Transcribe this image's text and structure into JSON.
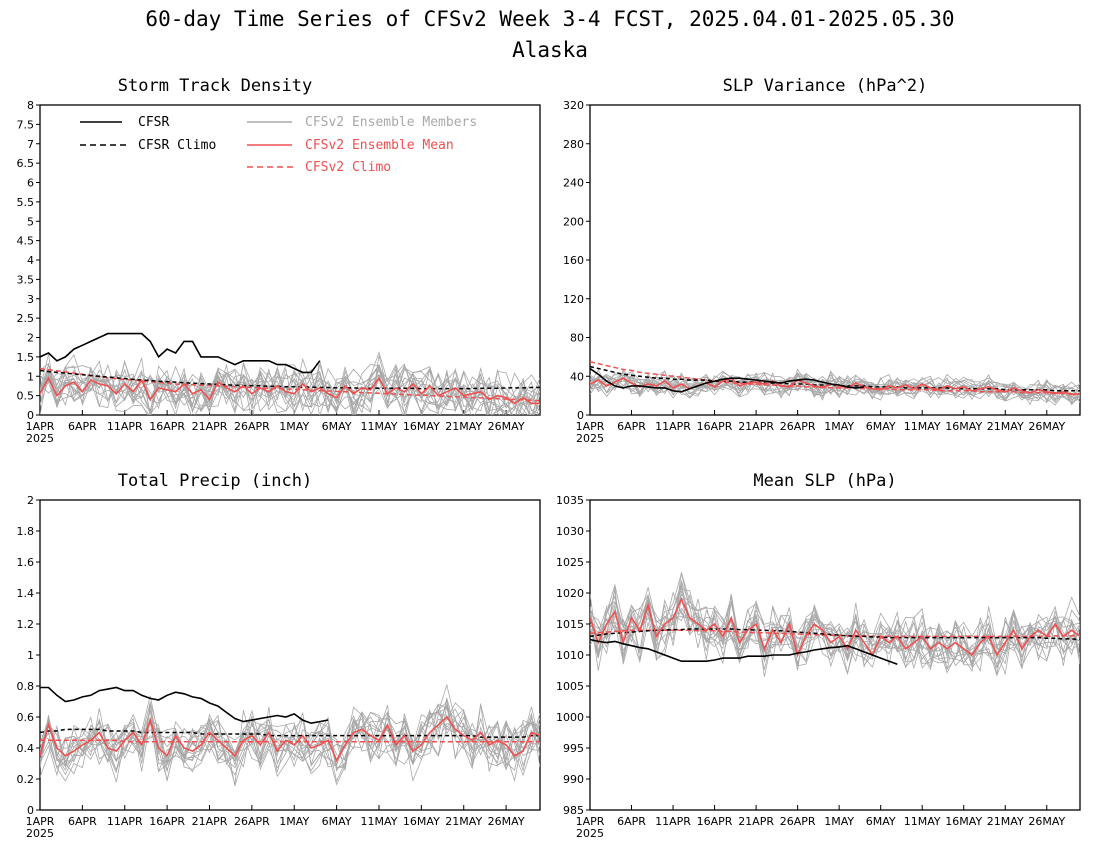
{
  "figure": {
    "title": "60-day Time Series of CFSv2 Week 3-4 FCST, 2025.04.01-2025.05.30",
    "subtitle": "Alaska"
  },
  "colors": {
    "cfsr": "#000000",
    "cfsr_climo": "#000000",
    "members": "#a8a8a8",
    "ens_mean": "#f05050",
    "cfsv2_climo": "#f05050"
  },
  "x_axis": {
    "ticks": [
      {
        "day": 0,
        "label": "1APR",
        "sublabel": "2025"
      },
      {
        "day": 5,
        "label": "6APR"
      },
      {
        "day": 10,
        "label": "11APR"
      },
      {
        "day": 15,
        "label": "16APR"
      },
      {
        "day": 20,
        "label": "21APR"
      },
      {
        "day": 25,
        "label": "26APR"
      },
      {
        "day": 30,
        "label": "1MAY"
      },
      {
        "day": 35,
        "label": "6MAY"
      },
      {
        "day": 40,
        "label": "11MAY"
      },
      {
        "day": 45,
        "label": "16MAY"
      },
      {
        "day": 50,
        "label": "21MAY"
      },
      {
        "day": 55,
        "label": "26MAY"
      }
    ]
  },
  "legend": {
    "cfsr": "CFSR",
    "cfsr_climo": "CFSR Climo",
    "members": "CFSv2 Ensemble Members",
    "ens_mean": "CFSv2 Ensemble Mean",
    "cfsv2_climo": "CFSv2 Climo"
  },
  "chart_data": [
    {
      "type": "line",
      "title": "Storm Track Density",
      "xlim": [
        0,
        59
      ],
      "ylim": [
        0,
        8
      ],
      "yticks": [
        0,
        0.5,
        1,
        1.5,
        2,
        2.5,
        3,
        3.5,
        4,
        4.5,
        5,
        5.5,
        6,
        6.5,
        7,
        7.5,
        8
      ],
      "grid": false,
      "legend": "top-left",
      "members_spread": 0.45,
      "cfsr": [
        1.5,
        1.6,
        1.4,
        1.5,
        1.7,
        1.8,
        1.9,
        2.0,
        2.1,
        2.1,
        2.1,
        2.1,
        2.1,
        1.9,
        1.5,
        1.7,
        1.6,
        1.9,
        1.9,
        1.5,
        1.5,
        1.5,
        1.4,
        1.3,
        1.4,
        1.4,
        1.4,
        1.4,
        1.3,
        1.3,
        1.2,
        1.1,
        1.1,
        1.4
      ],
      "cfsr_climo": [
        1.15,
        1.12,
        1.1,
        1.08,
        1.06,
        1.04,
        1.02,
        1.0,
        0.98,
        0.96,
        0.94,
        0.92,
        0.9,
        0.89,
        0.87,
        0.86,
        0.85,
        0.83,
        0.82,
        0.81,
        0.8,
        0.79,
        0.78,
        0.77,
        0.76,
        0.76,
        0.75,
        0.74,
        0.74,
        0.73,
        0.73,
        0.72,
        0.72,
        0.71,
        0.71,
        0.7,
        0.7,
        0.7,
        0.69,
        0.69,
        0.69,
        0.69,
        0.69,
        0.69,
        0.69,
        0.68,
        0.68,
        0.68,
        0.68,
        0.68,
        0.68,
        0.68,
        0.69,
        0.69,
        0.69,
        0.7,
        0.7,
        0.7,
        0.71,
        0.71
      ],
      "ens_mean": [
        0.55,
        0.95,
        0.5,
        0.75,
        0.85,
        0.6,
        0.9,
        0.8,
        0.75,
        0.55,
        0.8,
        0.6,
        0.9,
        0.4,
        0.7,
        0.65,
        0.6,
        0.8,
        0.55,
        0.65,
        0.4,
        0.85,
        0.7,
        0.6,
        0.75,
        0.55,
        0.7,
        0.6,
        0.75,
        0.6,
        0.55,
        0.8,
        0.6,
        0.7,
        0.55,
        0.45,
        0.75,
        0.55,
        0.7,
        0.65,
        0.95,
        0.55,
        0.7,
        0.6,
        0.8,
        0.55,
        0.75,
        0.5,
        0.6,
        0.7,
        0.5,
        0.55,
        0.6,
        0.4,
        0.5,
        0.45,
        0.3,
        0.45,
        0.3,
        0.3
      ],
      "cfsv2_climo": [
        1.2,
        1.17,
        1.14,
        1.11,
        1.08,
        1.05,
        1.02,
        0.99,
        0.96,
        0.94,
        0.92,
        0.9,
        0.88,
        0.86,
        0.84,
        0.82,
        0.8,
        0.79,
        0.78,
        0.77,
        0.76,
        0.75,
        0.74,
        0.73,
        0.72,
        0.71,
        0.7,
        0.69,
        0.68,
        0.67,
        0.66,
        0.65,
        0.64,
        0.63,
        0.62,
        0.61,
        0.6,
        0.59,
        0.58,
        0.57,
        0.56,
        0.55,
        0.54,
        0.53,
        0.52,
        0.51,
        0.5,
        0.49,
        0.48,
        0.47,
        0.46,
        0.45,
        0.44,
        0.43,
        0.42,
        0.41,
        0.4,
        0.39,
        0.38,
        0.37
      ]
    },
    {
      "type": "line",
      "title": "SLP Variance (hPa^2)",
      "xlim": [
        0,
        59
      ],
      "ylim": [
        0,
        320
      ],
      "yticks": [
        0,
        40,
        80,
        120,
        160,
        200,
        240,
        280,
        320
      ],
      "grid": false,
      "members_spread": 8,
      "cfsr": [
        48,
        42,
        35,
        30,
        28,
        30,
        30,
        29,
        28,
        28,
        25,
        24,
        27,
        30,
        33,
        35,
        37,
        38,
        38,
        37,
        36,
        35,
        34,
        33,
        35,
        36,
        37,
        36,
        34,
        32,
        31,
        29,
        28,
        29
      ],
      "cfsr_climo": [
        50,
        48,
        46,
        44,
        42,
        41,
        40,
        39,
        38,
        38,
        37,
        37,
        36,
        36,
        36,
        35,
        35,
        35,
        34,
        34,
        34,
        33,
        33,
        33,
        32,
        32,
        32,
        31,
        31,
        31,
        30,
        30,
        30,
        30,
        29,
        29,
        29,
        29,
        28,
        28,
        28,
        28,
        28,
        28,
        27,
        27,
        27,
        27,
        27,
        27,
        26,
        26,
        26,
        26,
        26,
        26,
        25,
        25,
        25,
        25
      ],
      "ens_mean": [
        32,
        36,
        30,
        34,
        38,
        33,
        29,
        32,
        30,
        35,
        28,
        32,
        27,
        30,
        33,
        29,
        35,
        38,
        30,
        33,
        34,
        32,
        35,
        30,
        29,
        36,
        33,
        30,
        28,
        32,
        30,
        28,
        33,
        29,
        27,
        26,
        30,
        28,
        31,
        27,
        32,
        28,
        26,
        30,
        27,
        29,
        25,
        27,
        29,
        26,
        24,
        28,
        25,
        23,
        26,
        24,
        22,
        24,
        21,
        22
      ],
      "cfsv2_climo": [
        55,
        53,
        51,
        49,
        47,
        46,
        44,
        43,
        42,
        41,
        40,
        39,
        38,
        37,
        36,
        35,
        34,
        33,
        33,
        32,
        32,
        31,
        31,
        30,
        30,
        30,
        29,
        29,
        29,
        28,
        28,
        28,
        28,
        27,
        27,
        27,
        27,
        26,
        26,
        26,
        26,
        26,
        25,
        25,
        25,
        25,
        25,
        24,
        24,
        24,
        24,
        24,
        23,
        23,
        23,
        23,
        23,
        22,
        22,
        22
      ]
    },
    {
      "type": "line",
      "title": "Total Precip (inch)",
      "xlim": [
        0,
        59
      ],
      "ylim": [
        0,
        2
      ],
      "yticks": [
        0,
        0.2,
        0.4,
        0.6,
        0.8,
        1,
        1.2,
        1.4,
        1.6,
        1.8,
        2
      ],
      "grid": false,
      "members_spread": 0.12,
      "cfsr": [
        0.79,
        0.79,
        0.74,
        0.7,
        0.71,
        0.73,
        0.74,
        0.77,
        0.78,
        0.79,
        0.77,
        0.77,
        0.74,
        0.72,
        0.71,
        0.74,
        0.76,
        0.75,
        0.73,
        0.72,
        0.69,
        0.67,
        0.63,
        0.59,
        0.57,
        0.58,
        0.59,
        0.6,
        0.61,
        0.6,
        0.62,
        0.58,
        0.56,
        0.57,
        0.58
      ],
      "cfsr_climo": [
        0.5,
        0.51,
        0.51,
        0.52,
        0.52,
        0.52,
        0.52,
        0.52,
        0.51,
        0.51,
        0.51,
        0.51,
        0.5,
        0.5,
        0.5,
        0.5,
        0.5,
        0.5,
        0.5,
        0.49,
        0.49,
        0.49,
        0.49,
        0.49,
        0.49,
        0.49,
        0.49,
        0.48,
        0.48,
        0.48,
        0.48,
        0.48,
        0.48,
        0.48,
        0.48,
        0.48,
        0.48,
        0.48,
        0.48,
        0.48,
        0.48,
        0.48,
        0.48,
        0.48,
        0.48,
        0.48,
        0.48,
        0.48,
        0.48,
        0.48,
        0.48,
        0.48,
        0.47,
        0.47,
        0.47,
        0.47,
        0.47,
        0.47,
        0.48,
        0.48
      ],
      "ens_mean": [
        0.35,
        0.55,
        0.4,
        0.35,
        0.38,
        0.42,
        0.45,
        0.5,
        0.4,
        0.38,
        0.45,
        0.5,
        0.42,
        0.58,
        0.4,
        0.35,
        0.48,
        0.4,
        0.38,
        0.42,
        0.5,
        0.45,
        0.4,
        0.35,
        0.45,
        0.48,
        0.42,
        0.5,
        0.38,
        0.45,
        0.42,
        0.48,
        0.4,
        0.42,
        0.45,
        0.32,
        0.42,
        0.5,
        0.52,
        0.48,
        0.45,
        0.55,
        0.42,
        0.48,
        0.38,
        0.42,
        0.5,
        0.55,
        0.6,
        0.52,
        0.48,
        0.45,
        0.5,
        0.42,
        0.45,
        0.42,
        0.35,
        0.38,
        0.5,
        0.48
      ],
      "cfsv2_climo": [
        0.45,
        0.45,
        0.45,
        0.45,
        0.45,
        0.45,
        0.45,
        0.45,
        0.45,
        0.45,
        0.44,
        0.44,
        0.44,
        0.44,
        0.44,
        0.44,
        0.44,
        0.44,
        0.44,
        0.44,
        0.44,
        0.44,
        0.44,
        0.44,
        0.44,
        0.44,
        0.44,
        0.44,
        0.44,
        0.44,
        0.44,
        0.44,
        0.44,
        0.44,
        0.44,
        0.44,
        0.44,
        0.44,
        0.44,
        0.44,
        0.44,
        0.44,
        0.44,
        0.44,
        0.44,
        0.44,
        0.44,
        0.44,
        0.44,
        0.44,
        0.44,
        0.44,
        0.44,
        0.44,
        0.44,
        0.44,
        0.44,
        0.44,
        0.44,
        0.44
      ]
    },
    {
      "type": "line",
      "title": "Mean SLP (hPa)",
      "xlim": [
        0,
        59
      ],
      "ylim": [
        985,
        1035
      ],
      "yticks": [
        985,
        990,
        995,
        1000,
        1005,
        1010,
        1015,
        1020,
        1025,
        1030,
        1035
      ],
      "grid": false,
      "members_spread": 3,
      "cfsr": [
        1012.5,
        1012.2,
        1012,
        1012.2,
        1011.8,
        1011.5,
        1011.2,
        1011,
        1010.5,
        1010,
        1009.5,
        1009,
        1009,
        1009,
        1009,
        1009.2,
        1009.5,
        1009.5,
        1009.5,
        1009.8,
        1009.8,
        1009.8,
        1010,
        1010,
        1010,
        1010.3,
        1010.5,
        1010.8,
        1011,
        1011.2,
        1011.3,
        1011.5,
        1011,
        1010.5,
        1010,
        1009.5,
        1009,
        1008.5
      ],
      "cfsr_climo": [
        1013,
        1013.2,
        1013.4,
        1013.5,
        1013.6,
        1013.7,
        1013.8,
        1013.9,
        1014,
        1014,
        1014.1,
        1014.1,
        1014.2,
        1014.2,
        1014.2,
        1014.2,
        1014.2,
        1014.2,
        1014.1,
        1014.1,
        1014,
        1014,
        1013.9,
        1013.9,
        1013.8,
        1013.7,
        1013.6,
        1013.5,
        1013.4,
        1013.3,
        1013.2,
        1013.1,
        1013,
        1013,
        1012.9,
        1012.9,
        1012.8,
        1012.8,
        1012.8,
        1012.8,
        1012.8,
        1012.8,
        1012.8,
        1012.8,
        1012.8,
        1012.8,
        1012.8,
        1012.8,
        1012.8,
        1012.8,
        1012.8,
        1012.8,
        1012.8,
        1012.8,
        1012.8,
        1012.7,
        1012.7,
        1012.6,
        1012.6,
        1012.5
      ],
      "ens_mean": [
        1016,
        1012,
        1015,
        1017,
        1012,
        1016,
        1014,
        1018,
        1013,
        1015,
        1016,
        1019,
        1016,
        1015,
        1014,
        1015,
        1013,
        1016,
        1012,
        1014,
        1015,
        1011,
        1014,
        1012,
        1015,
        1010,
        1013,
        1015,
        1014,
        1012,
        1013,
        1011,
        1014,
        1012,
        1010,
        1013,
        1012,
        1013,
        1011,
        1012,
        1013,
        1011,
        1012,
        1011,
        1012,
        1011,
        1010,
        1012,
        1013,
        1010,
        1012,
        1014,
        1011,
        1013,
        1014,
        1013,
        1015,
        1013,
        1014,
        1013
      ],
      "cfsv2_climo": [
        1013.5,
        1013.6,
        1013.7,
        1013.8,
        1013.9,
        1014,
        1014,
        1014,
        1014,
        1014,
        1014,
        1014,
        1014,
        1013.9,
        1013.9,
        1013.9,
        1013.8,
        1013.8,
        1013.7,
        1013.7,
        1013.6,
        1013.6,
        1013.5,
        1013.5,
        1013.4,
        1013.4,
        1013.3,
        1013.3,
        1013.2,
        1013.2,
        1013.2,
        1013.1,
        1013.1,
        1013.1,
        1013,
        1013,
        1013,
        1013,
        1013,
        1013,
        1013,
        1013,
        1013,
        1013,
        1013,
        1013,
        1013,
        1013,
        1013,
        1013,
        1013,
        1013,
        1013,
        1013,
        1013,
        1013,
        1013.1,
        1013.1,
        1013.1,
        1013.2
      ]
    }
  ]
}
